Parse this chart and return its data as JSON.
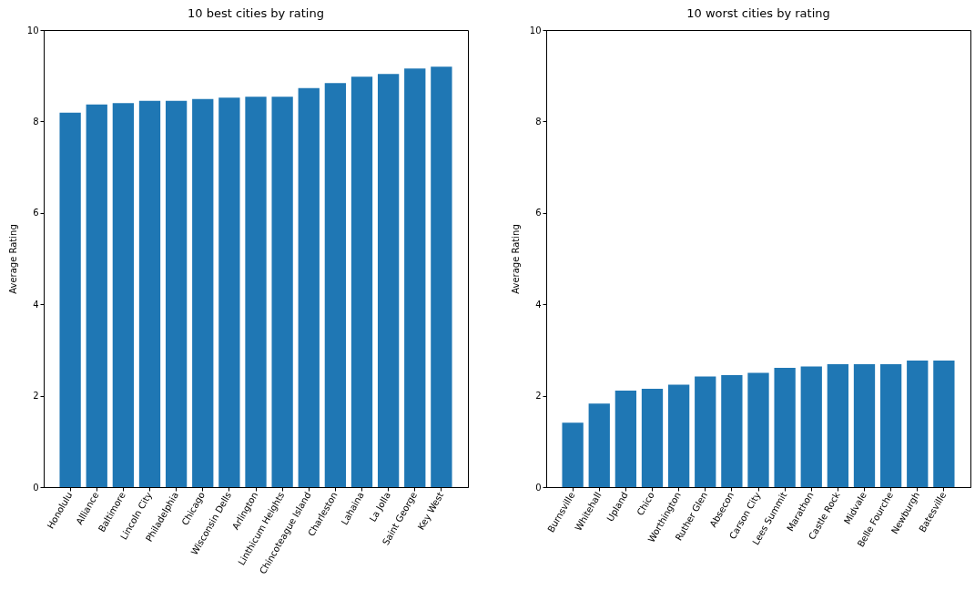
{
  "chart_data": [
    {
      "type": "bar",
      "title": "10 best cities by rating",
      "ylabel": "Average Rating",
      "categories": [
        "Honolulu",
        "Alliance",
        "Baltimore",
        "Lincoln City",
        "Philadelphia",
        "Chicago",
        "Wisconsin Dells",
        "Arlington",
        "Linthicum Heights",
        "Chincoteague Island",
        "Charleston",
        "Lahaina",
        "La Jolla",
        "Saint George",
        "Key West"
      ],
      "series": [
        {
          "color": "#1f77b4",
          "values": [
            8.19,
            8.37,
            8.4,
            8.45,
            8.45,
            8.49,
            8.52,
            8.54,
            8.54,
            8.73,
            8.84,
            8.98,
            9.04,
            9.16,
            9.2
          ]
        }
      ],
      "ylim": [
        0,
        10
      ],
      "yticks": [
        0,
        2,
        4,
        6,
        8,
        10
      ],
      "grid": false
    },
    {
      "type": "bar",
      "title": "10 worst cities by rating",
      "ylabel": "Average Rating",
      "categories": [
        "Burnsville",
        "Whitehall",
        "Upland",
        "Chico",
        "Worthington",
        "Ruther Glen",
        "Absecon",
        "Carson City",
        "Lees Summit",
        "Marathon",
        "Castle Rock",
        "Midvale",
        "Belle Fourche",
        "Newburgh",
        "Batesville"
      ],
      "series": [
        {
          "color": "#1f77b4",
          "values": [
            1.41,
            1.83,
            2.11,
            2.15,
            2.24,
            2.42,
            2.45,
            2.5,
            2.61,
            2.64,
            2.69,
            2.69,
            2.69,
            2.77,
            2.77
          ]
        }
      ],
      "ylim": [
        0,
        10
      ],
      "yticks": [
        0,
        2,
        4,
        6,
        8,
        10
      ],
      "grid": false
    }
  ]
}
